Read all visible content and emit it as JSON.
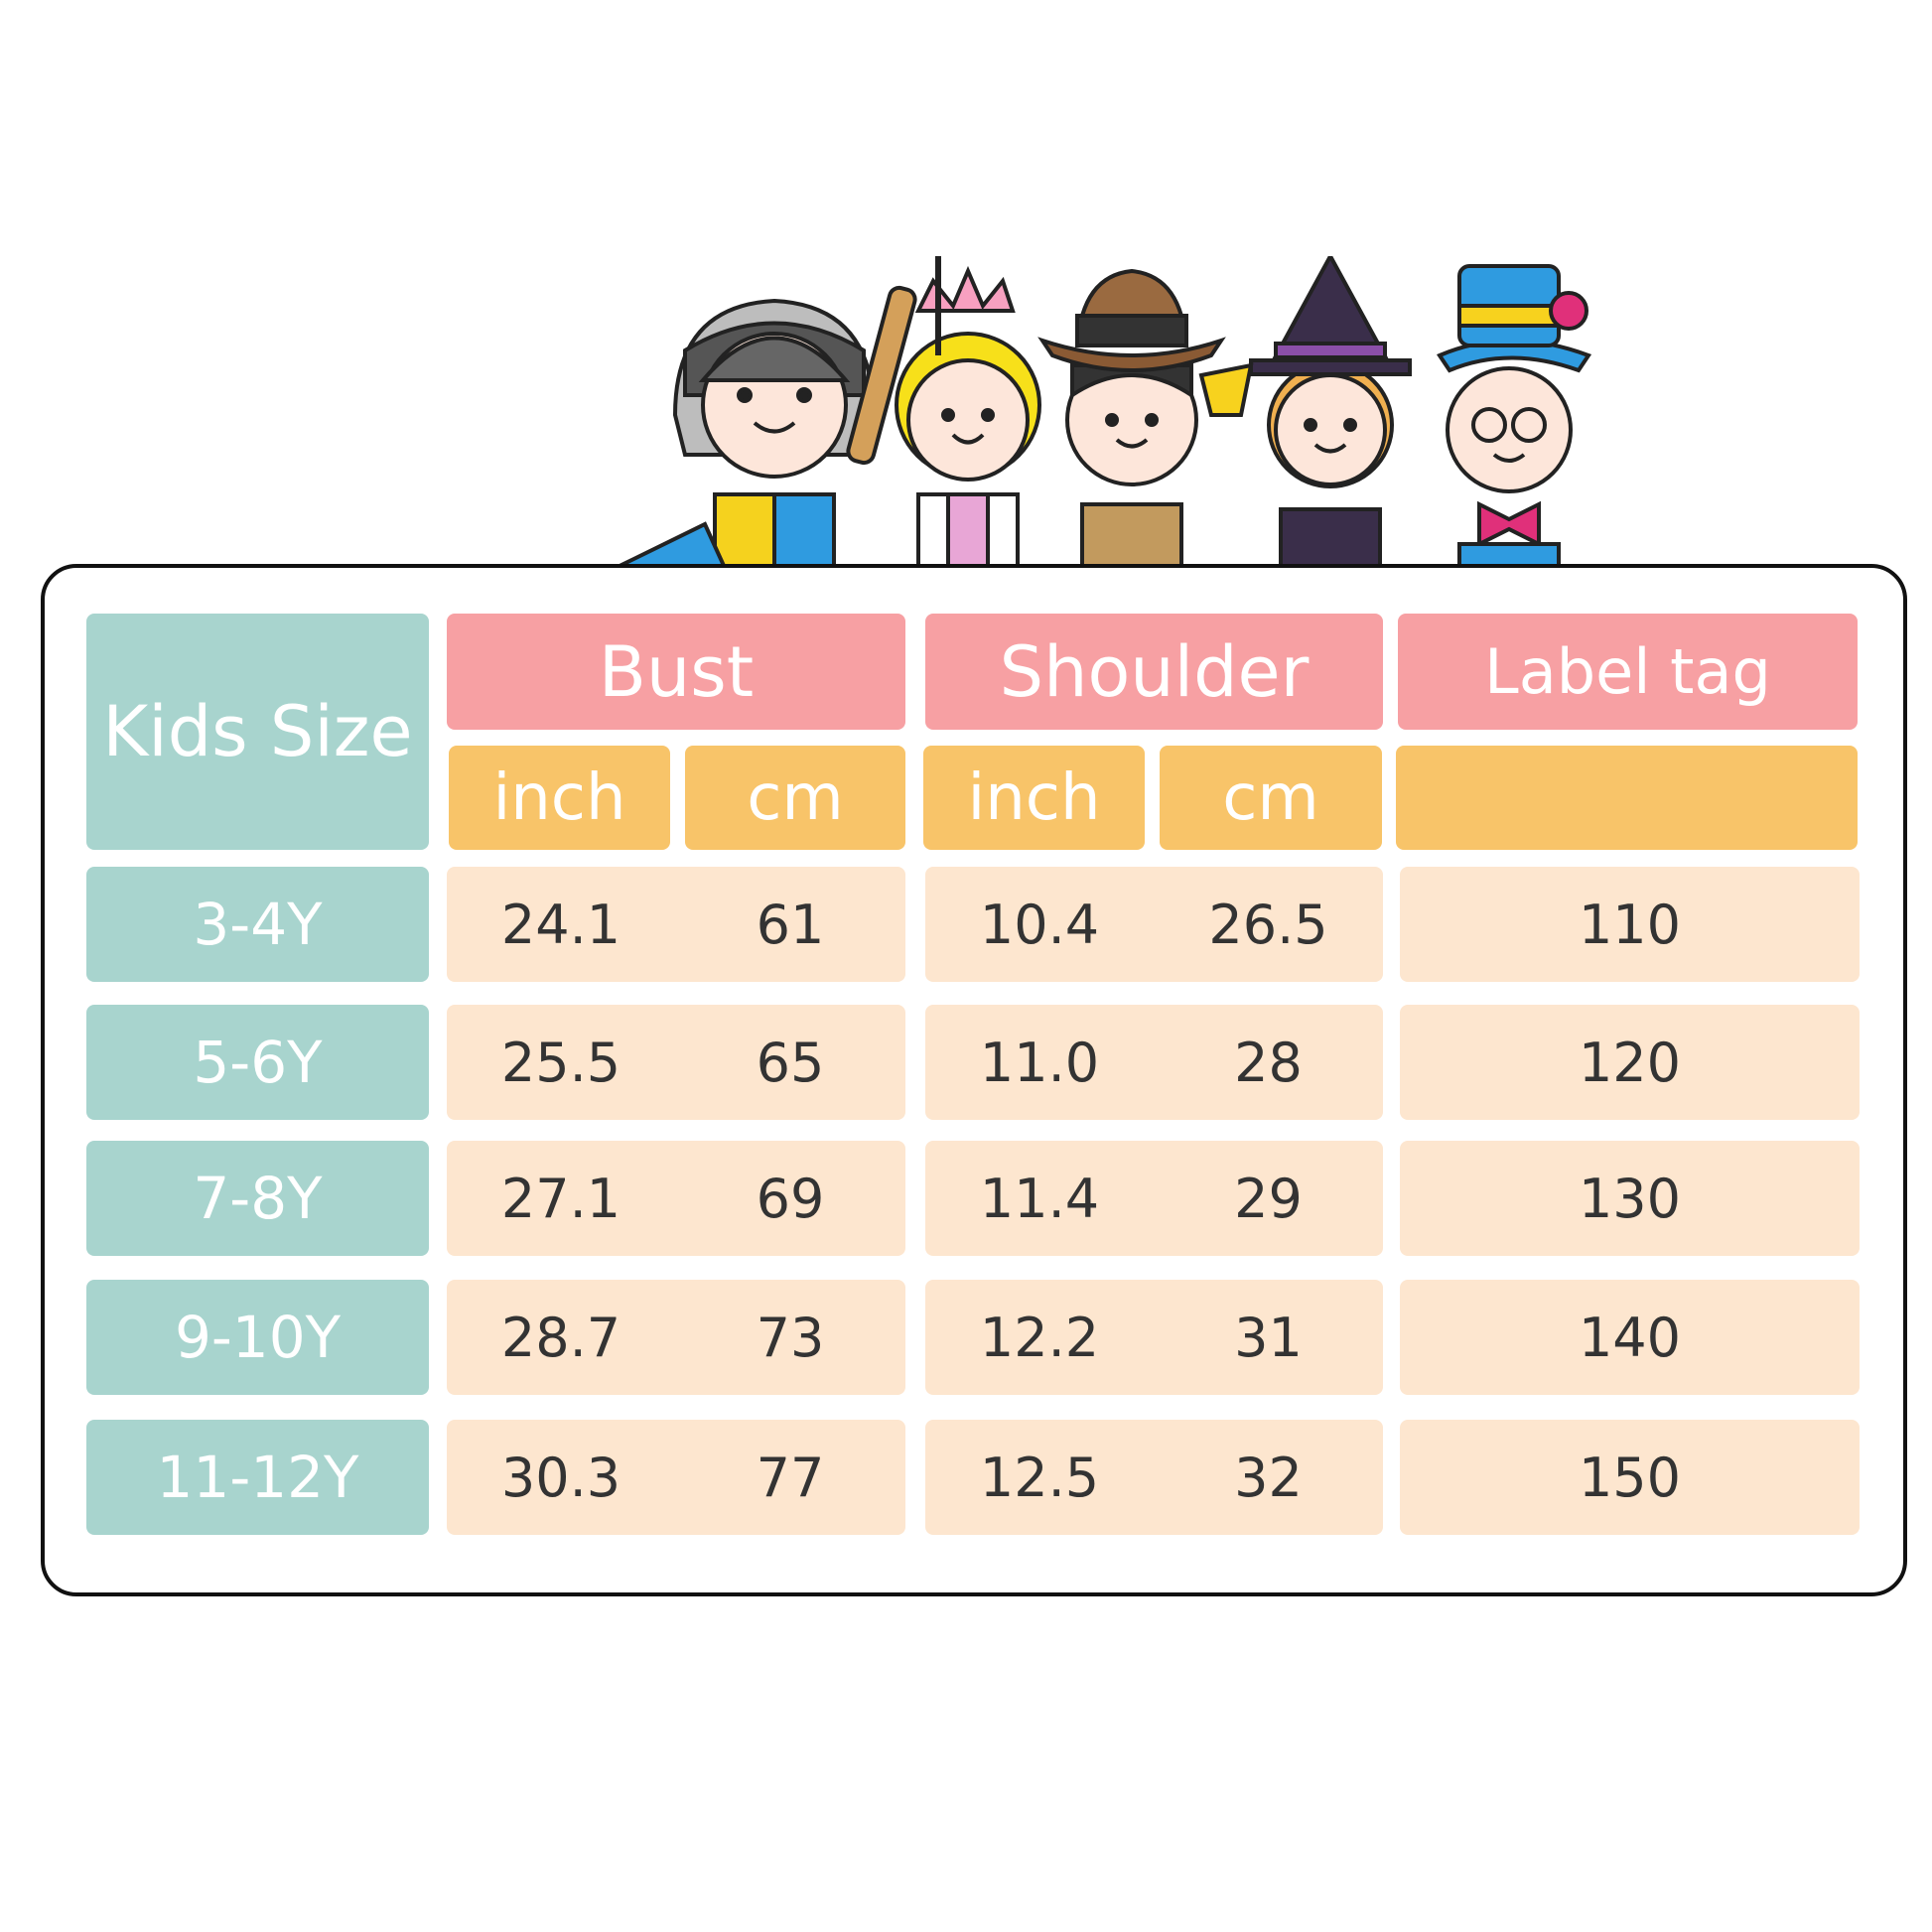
{
  "table": {
    "corner_label": "Kids Size",
    "groups": [
      {
        "label": "Bust",
        "units": [
          "inch",
          "cm"
        ]
      },
      {
        "label": "Shoulder",
        "units": [
          "inch",
          "cm"
        ]
      },
      {
        "label": "Label tag",
        "units": [
          ""
        ]
      }
    ],
    "rows": [
      {
        "size": "3-4Y",
        "bust_inch": "24.1",
        "bust_cm": "61",
        "shoulder_inch": "10.4",
        "shoulder_cm": "26.5",
        "label_tag": "110"
      },
      {
        "size": "5-6Y",
        "bust_inch": "25.5",
        "bust_cm": "65",
        "shoulder_inch": "11.0",
        "shoulder_cm": "28",
        "label_tag": "120"
      },
      {
        "size": "7-8Y",
        "bust_inch": "27.1",
        "bust_cm": "69",
        "shoulder_inch": "11.4",
        "shoulder_cm": "29",
        "label_tag": "130"
      },
      {
        "size": "9-10Y",
        "bust_inch": "28.7",
        "bust_cm": "73",
        "shoulder_inch": "12.2",
        "shoulder_cm": "31",
        "label_tag": "140"
      },
      {
        "size": "11-12Y",
        "bust_inch": "30.3",
        "bust_cm": "77",
        "shoulder_inch": "12.5",
        "shoulder_cm": "32",
        "label_tag": "150"
      }
    ]
  },
  "illustration": {
    "characters": [
      "knight",
      "princess",
      "cowboy",
      "witch",
      "magician"
    ]
  },
  "colors": {
    "size_column": "#a8d4ce",
    "group_header": "#f7a0a3",
    "unit_header": "#f8c469",
    "data_cell": "#fde6cf"
  }
}
